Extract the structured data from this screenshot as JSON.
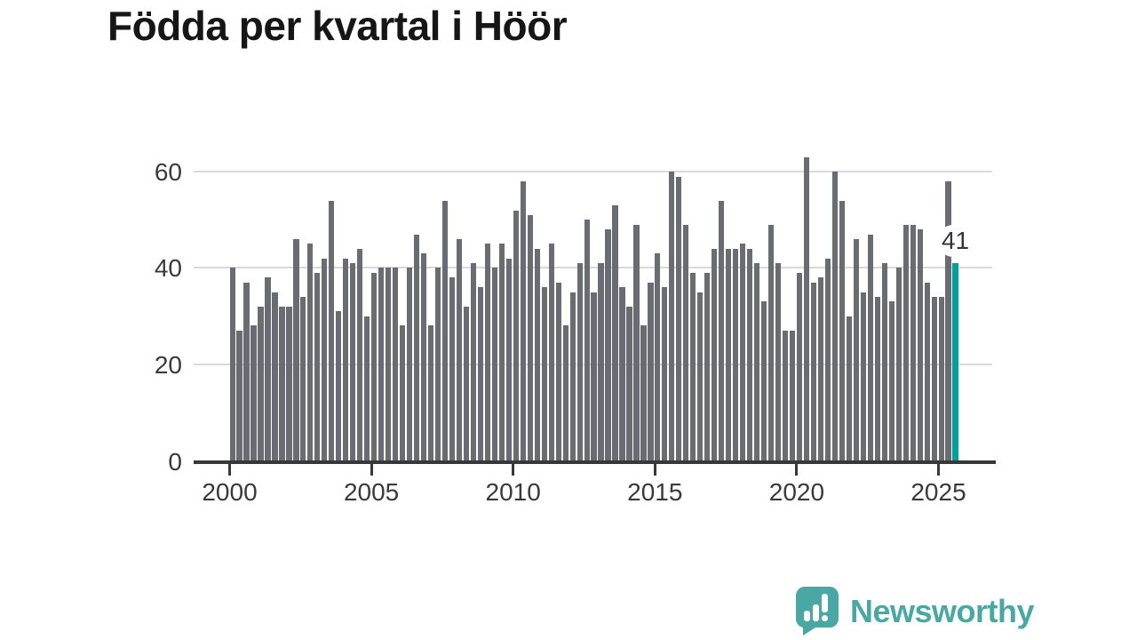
{
  "title": "Födda per kvartal i Höör",
  "chart_data": {
    "type": "bar",
    "title": "Födda per kvartal i Höör",
    "x_start": "2000 Q1",
    "x_end": "2025 Q3",
    "quarters_per_year": 4,
    "values": [
      40,
      27,
      37,
      28,
      32,
      38,
      35,
      32,
      32,
      46,
      34,
      45,
      39,
      42,
      54,
      31,
      42,
      41,
      44,
      30,
      39,
      40,
      40,
      40,
      28,
      40,
      47,
      43,
      28,
      40,
      54,
      38,
      46,
      32,
      41,
      36,
      45,
      40,
      45,
      42,
      52,
      58,
      51,
      44,
      36,
      45,
      37,
      28,
      35,
      41,
      50,
      35,
      41,
      48,
      53,
      36,
      32,
      49,
      28,
      37,
      43,
      36,
      60,
      59,
      49,
      39,
      35,
      39,
      44,
      54,
      44,
      44,
      45,
      44,
      41,
      33,
      49,
      41,
      27,
      27,
      39,
      63,
      37,
      38,
      42,
      60,
      54,
      30,
      46,
      35,
      47,
      34,
      41,
      33,
      40,
      49,
      49,
      48,
      37,
      34,
      34,
      58,
      41
    ],
    "highlight_last_bar": true,
    "annotation_value": "41",
    "x_tick_years": [
      2000,
      2005,
      2010,
      2015,
      2020,
      2025
    ],
    "x_tick_labels": [
      "2000",
      "2005",
      "2010",
      "2015",
      "2020",
      "2025"
    ],
    "y_tick_values": [
      0,
      20,
      40,
      60
    ],
    "y_tick_labels": [
      "0",
      "20",
      "40",
      "60"
    ],
    "ylim": [
      0,
      65
    ],
    "grid": true,
    "legend": "none",
    "bar_color": "#6b6b74",
    "highlight_color": "#00a19c",
    "axis_color": "#383838",
    "grid_color": "#d9d9d9",
    "tick_label_color": "#3a3a3a",
    "annotation_color": "#33333c"
  },
  "footer": {
    "brand": "Newsworthy",
    "brand_color": "#49a8a4",
    "logo_icon": "bar-chart-speech-bubble-icon"
  }
}
